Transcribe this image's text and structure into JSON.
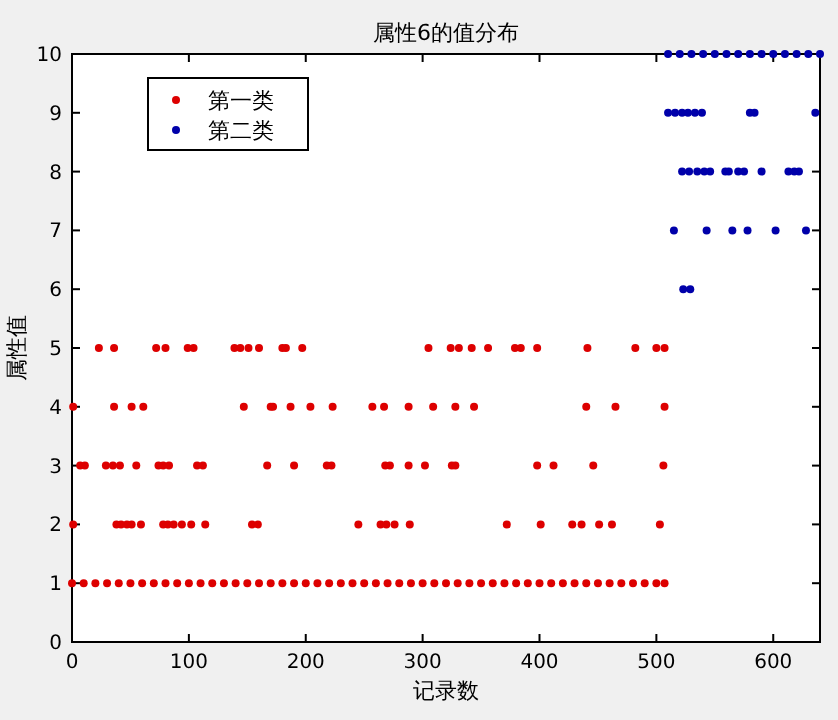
{
  "chart_data": {
    "type": "scatter",
    "title": "属性6的值分布",
    "xlabel": "记录数",
    "ylabel": "属性值",
    "xlim": [
      0,
      640
    ],
    "ylim": [
      0,
      10
    ],
    "xticks": [
      0,
      100,
      200,
      300,
      400,
      500,
      600
    ],
    "yticks": [
      0,
      1,
      2,
      3,
      4,
      5,
      6,
      7,
      8,
      9,
      10
    ],
    "grid": false,
    "legend": "top left",
    "marker": "circle",
    "series": [
      {
        "name": "第一类",
        "color": "#dd0000",
        "x": [
          0,
          10,
          20,
          30,
          40,
          50,
          60,
          70,
          80,
          90,
          100,
          110,
          120,
          130,
          140,
          150,
          160,
          170,
          180,
          190,
          200,
          210,
          220,
          230,
          240,
          250,
          260,
          270,
          280,
          290,
          300,
          310,
          320,
          330,
          340,
          350,
          360,
          370,
          380,
          390,
          400,
          410,
          420,
          430,
          440,
          450,
          460,
          470,
          480,
          490,
          500,
          507,
          1,
          38,
          42,
          47,
          51,
          59,
          78,
          82,
          87,
          94,
          102,
          114,
          154,
          159,
          245,
          264,
          269,
          276,
          289,
          372,
          401,
          428,
          436,
          451,
          462,
          503,
          7,
          11,
          29,
          35,
          41,
          55,
          74,
          78,
          83,
          107,
          112,
          167,
          190,
          218,
          222,
          268,
          272,
          288,
          302,
          325,
          328,
          398,
          412,
          446,
          506,
          1,
          36,
          51,
          61,
          147,
          170,
          172,
          187,
          204,
          223,
          257,
          267,
          288,
          309,
          328,
          344,
          440,
          465,
          507,
          23,
          36,
          72,
          80,
          99,
          104,
          139,
          144,
          151,
          160,
          180,
          183,
          197,
          305,
          324,
          331,
          342,
          356,
          379,
          384,
          398,
          441,
          482,
          500,
          507
        ],
        "values": [
          1,
          1,
          1,
          1,
          1,
          1,
          1,
          1,
          1,
          1,
          1,
          1,
          1,
          1,
          1,
          1,
          1,
          1,
          1,
          1,
          1,
          1,
          1,
          1,
          1,
          1,
          1,
          1,
          1,
          1,
          1,
          1,
          1,
          1,
          1,
          1,
          1,
          1,
          1,
          1,
          1,
          1,
          1,
          1,
          1,
          1,
          1,
          1,
          1,
          1,
          1,
          1,
          2,
          2,
          2,
          2,
          2,
          2,
          2,
          2,
          2,
          2,
          2,
          2,
          2,
          2,
          2,
          2,
          2,
          2,
          2,
          2,
          2,
          2,
          2,
          2,
          2,
          2,
          3,
          3,
          3,
          3,
          3,
          3,
          3,
          3,
          3,
          3,
          3,
          3,
          3,
          3,
          3,
          3,
          3,
          3,
          3,
          3,
          3,
          3,
          3,
          3,
          3,
          4,
          4,
          4,
          4,
          4,
          4,
          4,
          4,
          4,
          4,
          4,
          4,
          4,
          4,
          4,
          4,
          4,
          4,
          4,
          5,
          5,
          5,
          5,
          5,
          5,
          5,
          5,
          5,
          5,
          5,
          5,
          5,
          5,
          5,
          5,
          5,
          5,
          5,
          5,
          5,
          5,
          5,
          5,
          5
        ]
      },
      {
        "name": "第二类",
        "color": "#0000aa",
        "x": [
          510,
          520,
          530,
          540,
          550,
          560,
          570,
          580,
          590,
          600,
          610,
          620,
          630,
          640,
          510,
          516,
          522,
          527,
          533,
          539,
          580,
          584,
          636,
          522,
          528,
          535,
          541,
          546,
          559,
          562,
          570,
          575,
          590,
          613,
          618,
          622,
          515,
          543,
          565,
          578,
          602,
          628,
          523,
          529
        ],
        "values": [
          10,
          10,
          10,
          10,
          10,
          10,
          10,
          10,
          10,
          10,
          10,
          10,
          10,
          10,
          9,
          9,
          9,
          9,
          9,
          9,
          9,
          9,
          9,
          8,
          8,
          8,
          8,
          8,
          8,
          8,
          8,
          8,
          8,
          8,
          8,
          8,
          7,
          7,
          7,
          7,
          7,
          7,
          6,
          6
        ]
      }
    ]
  }
}
